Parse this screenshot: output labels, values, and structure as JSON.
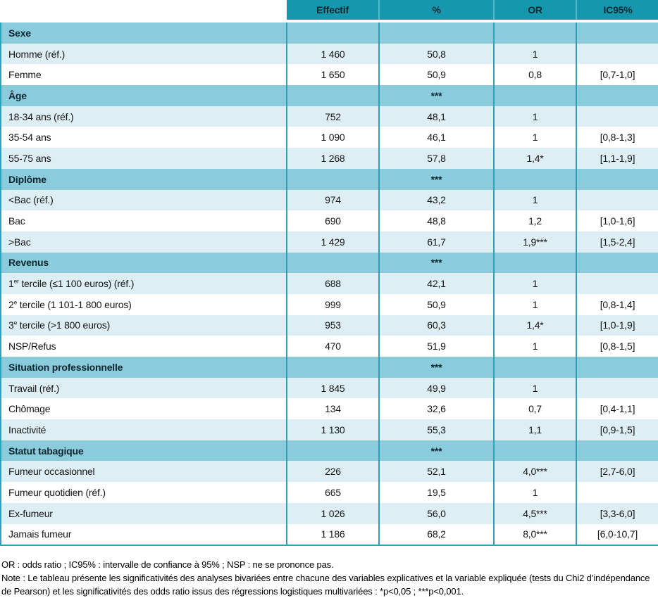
{
  "table": {
    "headers": [
      "Effectif",
      "%",
      "OR",
      "IC95%"
    ],
    "sections": [
      {
        "name": "Sexe",
        "pct_note": "",
        "rows": [
          {
            "label": "Homme (réf.)",
            "effectif": "1 460",
            "pct": "50,8",
            "or": "1",
            "ic95": ""
          },
          {
            "label": "Femme",
            "effectif": "1 650",
            "pct": "50,9",
            "or": "0,8",
            "ic95": "[0,7-1,0]"
          }
        ]
      },
      {
        "name": "Âge",
        "pct_note": "***",
        "rows": [
          {
            "label": "18-34 ans (réf.)",
            "effectif": "752",
            "pct": "48,1",
            "or": "1",
            "ic95": ""
          },
          {
            "label": "35-54 ans",
            "effectif": "1 090",
            "pct": "46,1",
            "or": "1",
            "ic95": "[0,8-1,3]"
          },
          {
            "label": "55-75 ans",
            "effectif": "1 268",
            "pct": "57,8",
            "or": "1,4*",
            "ic95": "[1,1-1,9]"
          }
        ]
      },
      {
        "name": "Diplôme",
        "pct_note": "***",
        "rows": [
          {
            "label": "<Bac (réf.)",
            "effectif": "974",
            "pct": "43,2",
            "or": "1",
            "ic95": ""
          },
          {
            "label": "Bac",
            "effectif": "690",
            "pct": "48,8",
            "or": "1,2",
            "ic95": "[1,0-1,6]"
          },
          {
            "label": ">Bac",
            "effectif": "1 429",
            "pct": "61,7",
            "or": "1,9***",
            "ic95": "[1,5-2,4]"
          }
        ]
      },
      {
        "name": "Revenus",
        "pct_note": "***",
        "rows": [
          {
            "label": [
              {
                "t": "1"
              },
              {
                "t": "er",
                "sup": true
              },
              {
                "t": " tercile (≤1 100 euros) (réf.)"
              }
            ],
            "effectif": "688",
            "pct": "42,1",
            "or": "1",
            "ic95": ""
          },
          {
            "label": [
              {
                "t": "2"
              },
              {
                "t": "e",
                "sup": true
              },
              {
                "t": " tercile (1 101-1 800 euros)"
              }
            ],
            "effectif": "999",
            "pct": "50,9",
            "or": "1",
            "ic95": "[0,8-1,4]"
          },
          {
            "label": [
              {
                "t": "3"
              },
              {
                "t": "e",
                "sup": true
              },
              {
                "t": " tercile (>1 800 euros)"
              }
            ],
            "effectif": "953",
            "pct": "60,3",
            "or": "1,4*",
            "ic95": "[1,0-1,9]"
          },
          {
            "label": "NSP/Refus",
            "effectif": "470",
            "pct": "51,9",
            "or": "1",
            "ic95": "[0,8-1,5]"
          }
        ]
      },
      {
        "name": "Situation professionnelle",
        "pct_note": "***",
        "rows": [
          {
            "label": "Travail (réf.)",
            "effectif": "1 845",
            "pct": "49,9",
            "or": "1",
            "ic95": ""
          },
          {
            "label": "Chômage",
            "effectif": "134",
            "pct": "32,6",
            "or": "0,7",
            "ic95": "[0,4-1,1]"
          },
          {
            "label": "Inactivité",
            "effectif": "1 130",
            "pct": "55,3",
            "or": "1,1",
            "ic95": "[0,9-1,5]"
          }
        ]
      },
      {
        "name": "Statut tabagique",
        "pct_note": "***",
        "rows": [
          {
            "label": "Fumeur occasionnel",
            "effectif": "226",
            "pct": "52,1",
            "or": "4,0***",
            "ic95": "[2,7-6,0]"
          },
          {
            "label": "Fumeur quotidien (réf.)",
            "effectif": "665",
            "pct": "19,5",
            "or": "1",
            "ic95": ""
          },
          {
            "label": "Ex-fumeur",
            "effectif": "1 026",
            "pct": "56,0",
            "or": "4,5***",
            "ic95": "[3,3-6,0]"
          },
          {
            "label": "Jamais fumeur",
            "effectif": "1 186",
            "pct": "68,2",
            "or": "8,0***",
            "ic95": "[6,0-10,7]"
          }
        ]
      }
    ]
  },
  "notes": [
    "OR : odds ratio ; IC95% : intervalle de confiance à 95% ; NSP : ne se prononce pas.",
    "Note : Le tableau présente les significativités des analyses bivariées entre chacune des variables explicatives et la variable expliquée (tests du Chi2 d’indépendance de Pearson) et les significativités des odds ratio issus des régressions logistiques multivariées : *p<0,05 ; ***p<0,001."
  ],
  "colors": {
    "header_bg": "#1598ae",
    "header_sep": "#54b7c8",
    "section_bg": "#8bccdc",
    "row_alt_bg": "#deeef5",
    "grid_line": "#29a3b9",
    "header_text": "#07262e",
    "body_text": "#161616"
  }
}
